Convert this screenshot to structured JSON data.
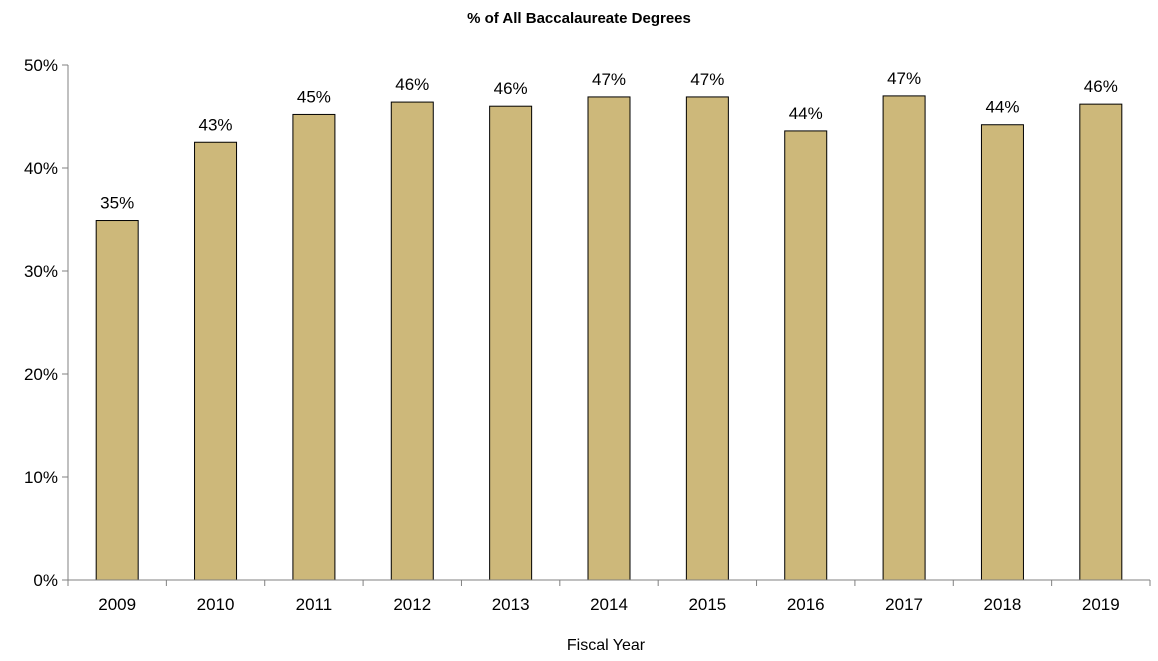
{
  "chart_data": {
    "type": "bar",
    "title": "% of All Baccalaureate Degrees",
    "xlabel": "Fiscal Year",
    "ylabel": "",
    "categories": [
      "2009",
      "2010",
      "2011",
      "2012",
      "2013",
      "2014",
      "2015",
      "2016",
      "2017",
      "2018",
      "2019"
    ],
    "values": [
      34.9,
      42.5,
      45.2,
      46.4,
      46.0,
      46.9,
      46.9,
      43.6,
      47.0,
      44.2,
      46.2
    ],
    "data_labels": [
      "35%",
      "43%",
      "45%",
      "46%",
      "46%",
      "47%",
      "47%",
      "44%",
      "47%",
      "44%",
      "46%"
    ],
    "ylim": [
      0,
      50
    ],
    "yticks": [
      0,
      10,
      20,
      30,
      40,
      50
    ],
    "ytick_labels": [
      "0%",
      "10%",
      "20%",
      "30%",
      "40%",
      "50%"
    ],
    "grid": false,
    "legend": "none",
    "bar_color": "#CDB87A",
    "bar_edge_color": "#000000"
  }
}
